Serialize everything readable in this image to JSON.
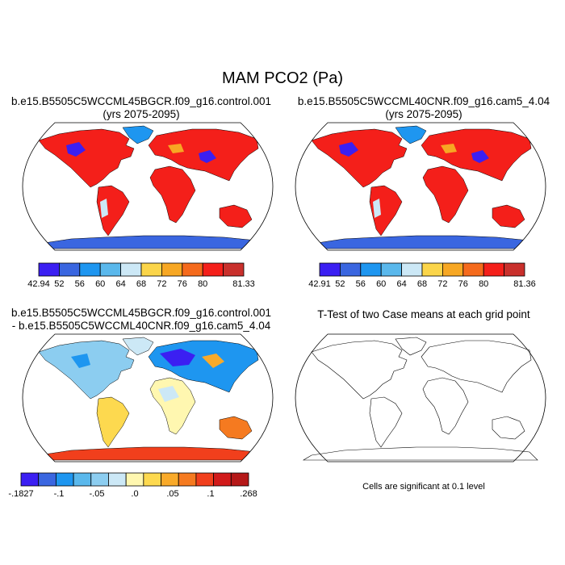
{
  "figure": {
    "title": "MAM PCO2 (Pa)",
    "note": "Cells are significant at 0.1 level"
  },
  "panels": [
    {
      "id": "p1",
      "title_lines": [
        "b.e15.B5505C5WCCML45BGCR.f09_g16.control.001",
        "(yrs 2075-2095)"
      ],
      "colorbar": {
        "colors": [
          "#3b1ff2",
          "#3a66e0",
          "#1e96f0",
          "#5ab8ec",
          "#cce8f6",
          "#fbd54a",
          "#f7a723",
          "#f56a1c",
          "#f41f1a",
          "#c9302c"
        ],
        "labels": [
          "42.94",
          "52",
          "56",
          "60",
          "64",
          "68",
          "72",
          "76",
          "80",
          "81.33"
        ]
      }
    },
    {
      "id": "p2",
      "title_lines": [
        "b.e15.B5505C5WCCML40CNR.f09_g16.cam5_4.04",
        "(yrs 2075-2095)"
      ],
      "colorbar": {
        "colors": [
          "#3b1ff2",
          "#3a66e0",
          "#1e96f0",
          "#5ab8ec",
          "#cce8f6",
          "#fbd54a",
          "#f7a723",
          "#f56a1c",
          "#f41f1a",
          "#c9302c"
        ],
        "labels": [
          "42.91",
          "52",
          "56",
          "60",
          "64",
          "68",
          "72",
          "76",
          "80",
          "81.36"
        ]
      }
    },
    {
      "id": "p3",
      "title_lines": [
        "b.e15.B5505C5WCCML45BGCR.f09_g16.control.001",
        "- b.e15.B5505C5WCCML40CNR.f09_g16.cam5_4.04"
      ],
      "colorbar": {
        "colors": [
          "#3b1ff2",
          "#3a66e0",
          "#1e96f0",
          "#5ab8ec",
          "#8ccdf0",
          "#cce8f6",
          "#fff7b0",
          "#fdd94f",
          "#f9aa2a",
          "#f57a20",
          "#f13f1c",
          "#d11a1a",
          "#b51818"
        ],
        "labels": [
          "-.1827",
          "-.1",
          "-.05",
          ".0",
          ".05",
          ".1",
          ".268"
        ]
      }
    },
    {
      "id": "p4",
      "title_lines": [
        "T-Test of two Case means at each grid point"
      ]
    }
  ],
  "colors": {
    "ocean": "#ffffff",
    "coast": "#000000"
  }
}
